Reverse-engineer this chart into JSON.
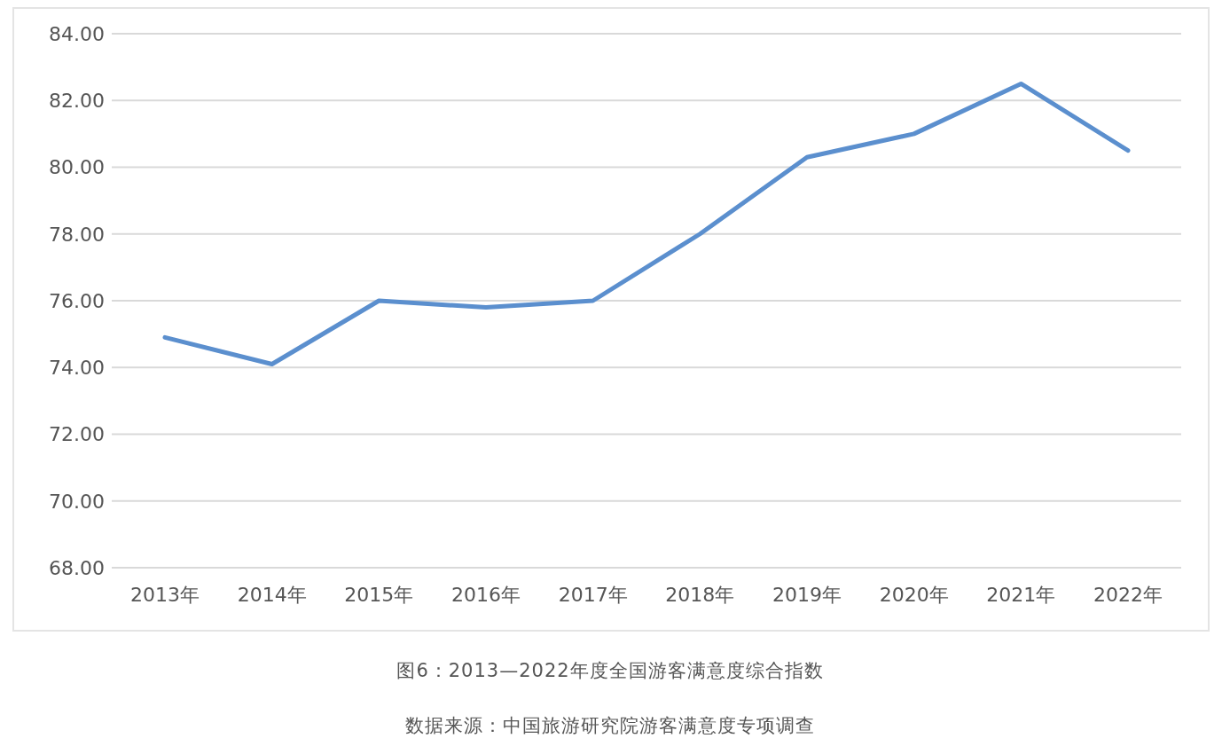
{
  "chart_data": {
    "type": "line",
    "title": "图6：2013—2022年度全国游客满意度综合指数",
    "categories": [
      "2013年",
      "2014年",
      "2015年",
      "2016年",
      "2017年",
      "2018年",
      "2019年",
      "2020年",
      "2021年",
      "2022年"
    ],
    "series": [
      {
        "color": "#5b8fce",
        "values": [
          74.9,
          74.1,
          76.0,
          75.8,
          76.0,
          78.0,
          80.3,
          81.0,
          82.5,
          80.5
        ]
      }
    ],
    "ylim": [
      68,
      84
    ],
    "yticks": [
      {
        "value": 68,
        "label": "68.00"
      },
      {
        "value": 70,
        "label": "70.00"
      },
      {
        "value": 72,
        "label": "72.00"
      },
      {
        "value": 74,
        "label": "74.00"
      },
      {
        "value": 76,
        "label": "76.00"
      },
      {
        "value": 78,
        "label": "78.00"
      },
      {
        "value": 80,
        "label": "80.00"
      },
      {
        "value": 82,
        "label": "82.00"
      },
      {
        "value": 84,
        "label": "84.00"
      }
    ],
    "grid": "y",
    "marker": "none",
    "line_style": "solid",
    "annotations": [
      "数据来源：中国旅游研究院游客满意度专项调查"
    ]
  }
}
